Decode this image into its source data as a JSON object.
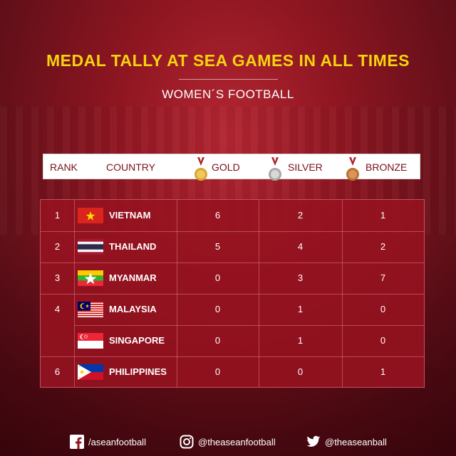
{
  "title": "MEDAL TALLY AT SEA GAMES IN ALL TIMES",
  "subtitle": "WOMEN´S FOOTBALL",
  "header": {
    "rank": "RANK",
    "country": "COUNTRY",
    "gold": "GOLD",
    "silver": "SILVER",
    "bronze": "BRONZE"
  },
  "rows": [
    {
      "rank": "1",
      "country": "VIETNAM",
      "gold": "6",
      "silver": "2",
      "bronze": "1",
      "flag": "vietnam"
    },
    {
      "rank": "2",
      "country": "THAILAND",
      "gold": "5",
      "silver": "4",
      "bronze": "2",
      "flag": "thailand"
    },
    {
      "rank": "3",
      "country": "MYANMAR",
      "gold": "0",
      "silver": "3",
      "bronze": "7",
      "flag": "myanmar"
    },
    {
      "rank": "4",
      "country": "MALAYSIA",
      "gold": "0",
      "silver": "1",
      "bronze": "0",
      "flag": "malaysia"
    },
    {
      "rank": "",
      "country": "SINGAPORE",
      "gold": "0",
      "silver": "1",
      "bronze": "0",
      "flag": "singapore"
    },
    {
      "rank": "6",
      "country": "PHILIPPINES",
      "gold": "0",
      "silver": "0",
      "bronze": "1",
      "flag": "philippines"
    }
  ],
  "footer": {
    "facebook": "/aseanfootball",
    "instagram": "@theaseanfootball",
    "twitter": "@theaseanball"
  },
  "colors": {
    "accent_title": "#f5d40f",
    "brand_red": "#8e1621",
    "gold_medal": "#d9a531",
    "silver_medal": "#b8b8b8",
    "bronze_medal": "#b87333"
  }
}
